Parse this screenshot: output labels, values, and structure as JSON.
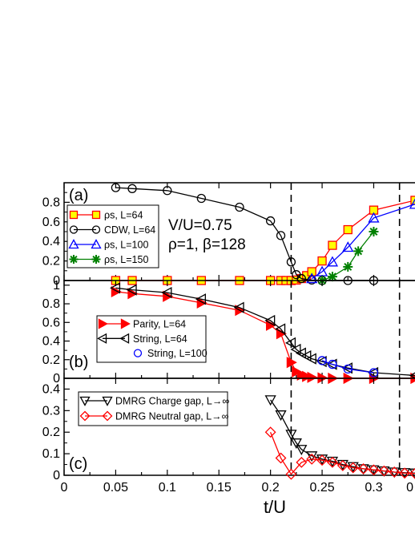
{
  "figure": {
    "xlabel": "t/U",
    "x_ticks": [
      "0",
      "0.05",
      "0.1",
      "0.15",
      "0.2",
      "0.25",
      "0.3",
      "0"
    ],
    "dashed_lines_x": [
      0.22,
      0.325
    ]
  },
  "chart_data": [
    {
      "type": "line",
      "panel_label": "(a)",
      "xlim": [
        0,
        0.34
      ],
      "ylim": [
        0,
        1.0
      ],
      "y_ticks": [
        "0",
        "0.2",
        "0.4",
        "0.6",
        "0.8"
      ],
      "y_tick_values": [
        0,
        0.2,
        0.4,
        0.6,
        0.8
      ],
      "annotation": [
        "V/U=0.75",
        "ρ=1, β=128"
      ],
      "legend_position": "left",
      "series": [
        {
          "name": "ρs, L=64",
          "color": "#ff0000",
          "marker": "square",
          "marker_fill": "#ffff00",
          "x": [
            0.05,
            0.066,
            0.1,
            0.133,
            0.17,
            0.2,
            0.21,
            0.215,
            0.22,
            0.225,
            0.23,
            0.235,
            0.24,
            0.25,
            0.26,
            0.275,
            0.3,
            0.34
          ],
          "y": [
            0,
            0,
            0,
            0,
            0,
            0,
            0,
            0,
            0,
            0.005,
            0.02,
            0.05,
            0.09,
            0.2,
            0.36,
            0.52,
            0.72,
            0.82
          ]
        },
        {
          "name": "CDW, L=64",
          "color": "#000000",
          "marker": "circle",
          "marker_fill": "none",
          "x": [
            0.05,
            0.066,
            0.1,
            0.133,
            0.17,
            0.2,
            0.21,
            0.22,
            0.225,
            0.23,
            0.24,
            0.25,
            0.275,
            0.3
          ],
          "y": [
            0.95,
            0.94,
            0.92,
            0.84,
            0.75,
            0.61,
            0.46,
            0.19,
            0.06,
            0.02,
            0.005,
            0,
            0,
            0
          ]
        },
        {
          "name": "ρs, L=100",
          "color": "#0000ff",
          "marker": "triangle-up",
          "marker_fill": "none",
          "x": [
            0.24,
            0.25,
            0.26,
            0.275,
            0.3,
            0.34
          ],
          "y": [
            0.02,
            0.09,
            0.19,
            0.34,
            0.64,
            0.78
          ]
        },
        {
          "name": "ρs, L=150",
          "color": "#008000",
          "marker": "star",
          "marker_fill": "#008000",
          "x": [
            0.25,
            0.26,
            0.275,
            0.285,
            0.3
          ],
          "y": [
            0,
            0.04,
            0.14,
            0.3,
            0.5
          ]
        }
      ]
    },
    {
      "type": "line",
      "panel_label": "(b)",
      "xlim": [
        0,
        0.34
      ],
      "ylim": [
        0,
        1.05
      ],
      "y_ticks": [
        "0",
        "0.2",
        "0.4",
        "0.6",
        "0.8",
        "1"
      ],
      "y_tick_values": [
        0,
        0.2,
        0.4,
        0.6,
        0.8,
        1.0
      ],
      "legend_position": "lower-left",
      "series": [
        {
          "name": "Parity, L=64",
          "color": "#ff0000",
          "marker": "triangle-right",
          "marker_fill": "#ff0000",
          "x": [
            0.05,
            0.066,
            0.1,
            0.133,
            0.17,
            0.2,
            0.21,
            0.22,
            0.225,
            0.23,
            0.235,
            0.24,
            0.25,
            0.26,
            0.275,
            0.3,
            0.34
          ],
          "y": [
            0.93,
            0.91,
            0.88,
            0.81,
            0.73,
            0.57,
            0.48,
            0.17,
            0.07,
            0.035,
            0.02,
            0.01,
            0.005,
            0,
            0,
            0,
            0
          ]
        },
        {
          "name": "String, L=64",
          "color": "#000000",
          "marker": "triangle-left",
          "marker_fill": "none",
          "x": [
            0.05,
            0.066,
            0.1,
            0.133,
            0.17,
            0.2,
            0.21,
            0.22,
            0.225,
            0.23,
            0.235,
            0.24,
            0.25,
            0.26,
            0.275,
            0.3,
            0.34
          ],
          "y": [
            0.97,
            0.95,
            0.92,
            0.85,
            0.76,
            0.62,
            0.53,
            0.38,
            0.31,
            0.27,
            0.24,
            0.21,
            0.18,
            0.15,
            0.11,
            0.06,
            0.03
          ]
        },
        {
          "name": "String, L=100",
          "color": "#0000ff",
          "marker": "circle",
          "marker_fill": "none",
          "x": [
            0.25,
            0.26,
            0.275,
            0.3
          ],
          "y": [
            0.19,
            0.15,
            0.1,
            0.06
          ]
        }
      ]
    },
    {
      "type": "line",
      "panel_label": "(c)",
      "xlim": [
        0,
        0.34
      ],
      "ylim": [
        0,
        0.45
      ],
      "y_ticks": [
        "0",
        "0.1",
        "0.2",
        "0.3",
        "0.4"
      ],
      "y_tick_values": [
        0,
        0.1,
        0.2,
        0.3,
        0.4
      ],
      "legend_position": "top-left",
      "series": [
        {
          "name": "DMRG Charge gap, L→∞",
          "color": "#000000",
          "marker": "triangle-down",
          "marker_fill": "none",
          "x": [
            0.2,
            0.21,
            0.22,
            0.225,
            0.23,
            0.24,
            0.25,
            0.26,
            0.27,
            0.28,
            0.29,
            0.3,
            0.31,
            0.32,
            0.33,
            0.34
          ],
          "y": [
            0.35,
            0.28,
            0.19,
            0.15,
            0.12,
            0.09,
            0.075,
            0.065,
            0.05,
            0.04,
            0.03,
            0.025,
            0.02,
            0.015,
            0.012,
            0.01
          ]
        },
        {
          "name": "DMRG Neutral gap, L→∞",
          "color": "#ff0000",
          "marker": "diamond",
          "marker_fill": "none",
          "x": [
            0.2,
            0.21,
            0.22,
            0.23,
            0.24,
            0.25,
            0.26,
            0.27,
            0.28,
            0.29,
            0.3,
            0.31,
            0.32,
            0.33,
            0.34
          ],
          "y": [
            0.2,
            0.08,
            0.005,
            0.06,
            0.075,
            0.07,
            0.06,
            0.045,
            0.035,
            0.03,
            0.025,
            0.02,
            0.015,
            0.01,
            0.008
          ]
        }
      ]
    }
  ]
}
